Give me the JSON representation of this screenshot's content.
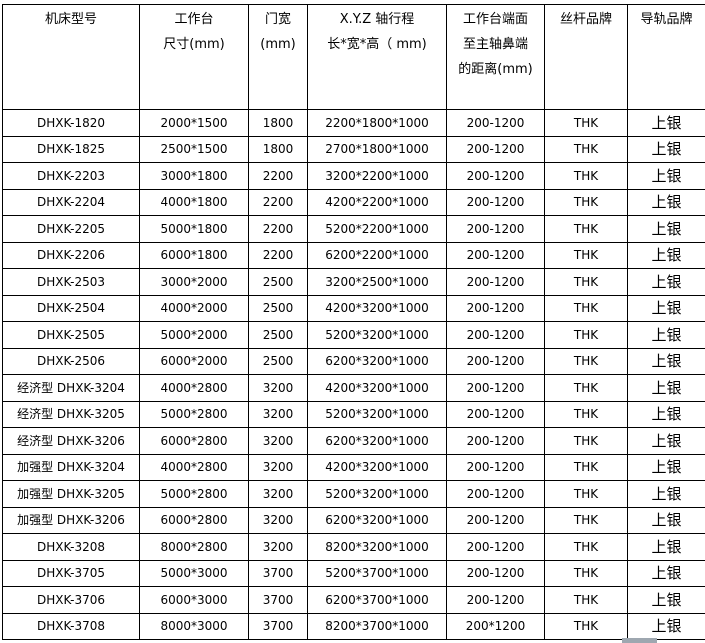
{
  "table": {
    "headers": [
      [
        "机床型号"
      ],
      [
        "工作台",
        "尺寸(mm)"
      ],
      [
        "门宽",
        "(mm)"
      ],
      [
        "X.Y.Z 轴行程",
        "长*宽*高（ mm)"
      ],
      [
        "工作台端面",
        "至主轴鼻端",
        "的距离(mm)"
      ],
      [
        "丝杆品牌"
      ],
      [
        "导轨品牌"
      ]
    ],
    "rows": [
      [
        "DHXK-1820",
        "2000*1500",
        "1800",
        "2200*1800*1000",
        "200-1200",
        "THK",
        "上银"
      ],
      [
        "DHXK-1825",
        "2500*1500",
        "1800",
        "2700*1800*1000",
        "200-1200",
        "THK",
        "上银"
      ],
      [
        "DHXK-2203",
        "3000*1800",
        "2200",
        "3200*2200*1000",
        "200-1200",
        "THK",
        "上银"
      ],
      [
        "DHXK-2204",
        "4000*1800",
        "2200",
        "4200*2200*1000",
        "200-1200",
        "THK",
        "上银"
      ],
      [
        "DHXK-2205",
        "5000*1800",
        "2200",
        "5200*2200*1000",
        "200-1200",
        "THK",
        "上银"
      ],
      [
        "DHXK-2206",
        "6000*1800",
        "2200",
        "6200*2200*1000",
        "200-1200",
        "THK",
        "上银"
      ],
      [
        "DHXK-2503",
        "3000*2000",
        "2500",
        "3200*2500*1000",
        "200-1200",
        "THK",
        "上银"
      ],
      [
        "DHXK-2504",
        "4000*2000",
        "2500",
        "4200*3200*1000",
        "200-1200",
        "THK",
        "上银"
      ],
      [
        "DHXK-2505",
        "5000*2000",
        "2500",
        "5200*3200*1000",
        "200-1200",
        "THK",
        "上银"
      ],
      [
        "DHXK-2506",
        "6000*2000",
        "2500",
        "6200*3200*1000",
        "200-1200",
        "THK",
        "上银"
      ],
      [
        "经济型 DHXK-3204",
        "4000*2800",
        "3200",
        "4200*3200*1000",
        "200-1200",
        "THK",
        "上银"
      ],
      [
        "经济型 DHXK-3205",
        "5000*2800",
        "3200",
        "5200*3200*1000",
        "200-1200",
        "THK",
        "上银"
      ],
      [
        "经济型 DHXK-3206",
        "6000*2800",
        "3200",
        "6200*3200*1000",
        "200-1200",
        "THK",
        "上银"
      ],
      [
        "加强型 DHXK-3204",
        "4000*2800",
        "3200",
        "4200*3200*1000",
        "200-1200",
        "THK",
        "上银"
      ],
      [
        "加强型 DHXK-3205",
        "5000*2800",
        "3200",
        "5200*3200*1000",
        "200-1200",
        "THK",
        "上银"
      ],
      [
        "加强型 DHXK-3206",
        "6000*2800",
        "3200",
        "6200*3200*1000",
        "200-1200",
        "THK",
        "上银"
      ],
      [
        "DHXK-3208",
        "8000*2800",
        "3200",
        "8200*3200*1000",
        "200-1200",
        "THK",
        "上银"
      ],
      [
        "DHXK-3705",
        "5000*3000",
        "3700",
        "5200*3700*1000",
        "200-1200",
        "THK",
        "上银"
      ],
      [
        "DHXK-3706",
        "6000*3000",
        "3700",
        "6200*3700*1000",
        "200-1200",
        "THK",
        "上银"
      ],
      [
        "DHXK-3708",
        "8000*3000",
        "3700",
        "8200*3700*1000",
        "200*1200",
        "THK",
        "上银"
      ]
    ]
  }
}
